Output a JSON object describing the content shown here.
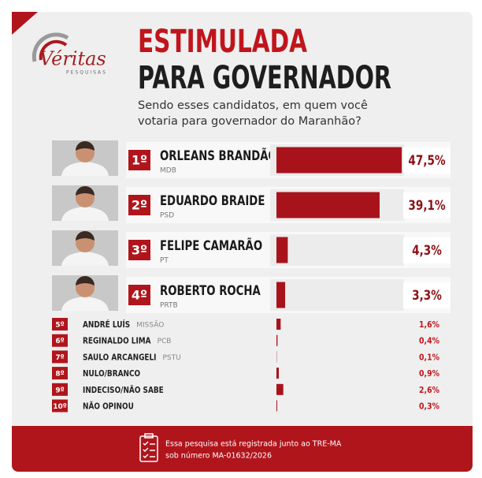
{
  "logo": {
    "name": "Véritas",
    "tagline": "PESQUISAS"
  },
  "chart_data": {
    "type": "bar",
    "title": [
      "ESTIMULADA",
      "PARA GOVERNADOR"
    ],
    "subtitle": [
      "Sendo esses candidatos, em quem você",
      "votaria para governador do Maranhão?"
    ],
    "ranks": [
      "1º",
      "2º",
      "3º",
      "4º",
      "5º",
      "6º",
      "7º",
      "8º",
      "9º",
      "10º"
    ],
    "categories": [
      "ORLEANS BRANDÃO",
      "EDUARDO BRAIDE",
      "FELIPE CAMARÃO",
      "ROBERTO ROCHA",
      "ANDRÉ LUÍS",
      "REGINALDO LIMA",
      "SAULO ARCANGELI",
      "NULO/BRANCO",
      "INDECISO/NÃO SABE",
      "NÃO OPINOU"
    ],
    "parties": [
      "MDB",
      "PSD",
      "PT",
      "PRTB",
      "MISSÃO",
      "PCB",
      "PSTU",
      null,
      null,
      null
    ],
    "values": [
      47.5,
      39.1,
      4.3,
      3.3,
      1.6,
      0.4,
      0.1,
      0.9,
      2.6,
      0.3
    ],
    "value_labels": [
      "47,5%",
      "39,1%",
      "4,3%",
      "3,3%",
      "1,6%",
      "0,4%",
      "0,1%",
      "0,9%",
      "2,6%",
      "0,3%"
    ],
    "color": "#a8131b"
  },
  "footer": {
    "lines": [
      "Essa pesquisa está registrada junto ao TRE-MA",
      "sob número MA-01632/2026"
    ]
  }
}
